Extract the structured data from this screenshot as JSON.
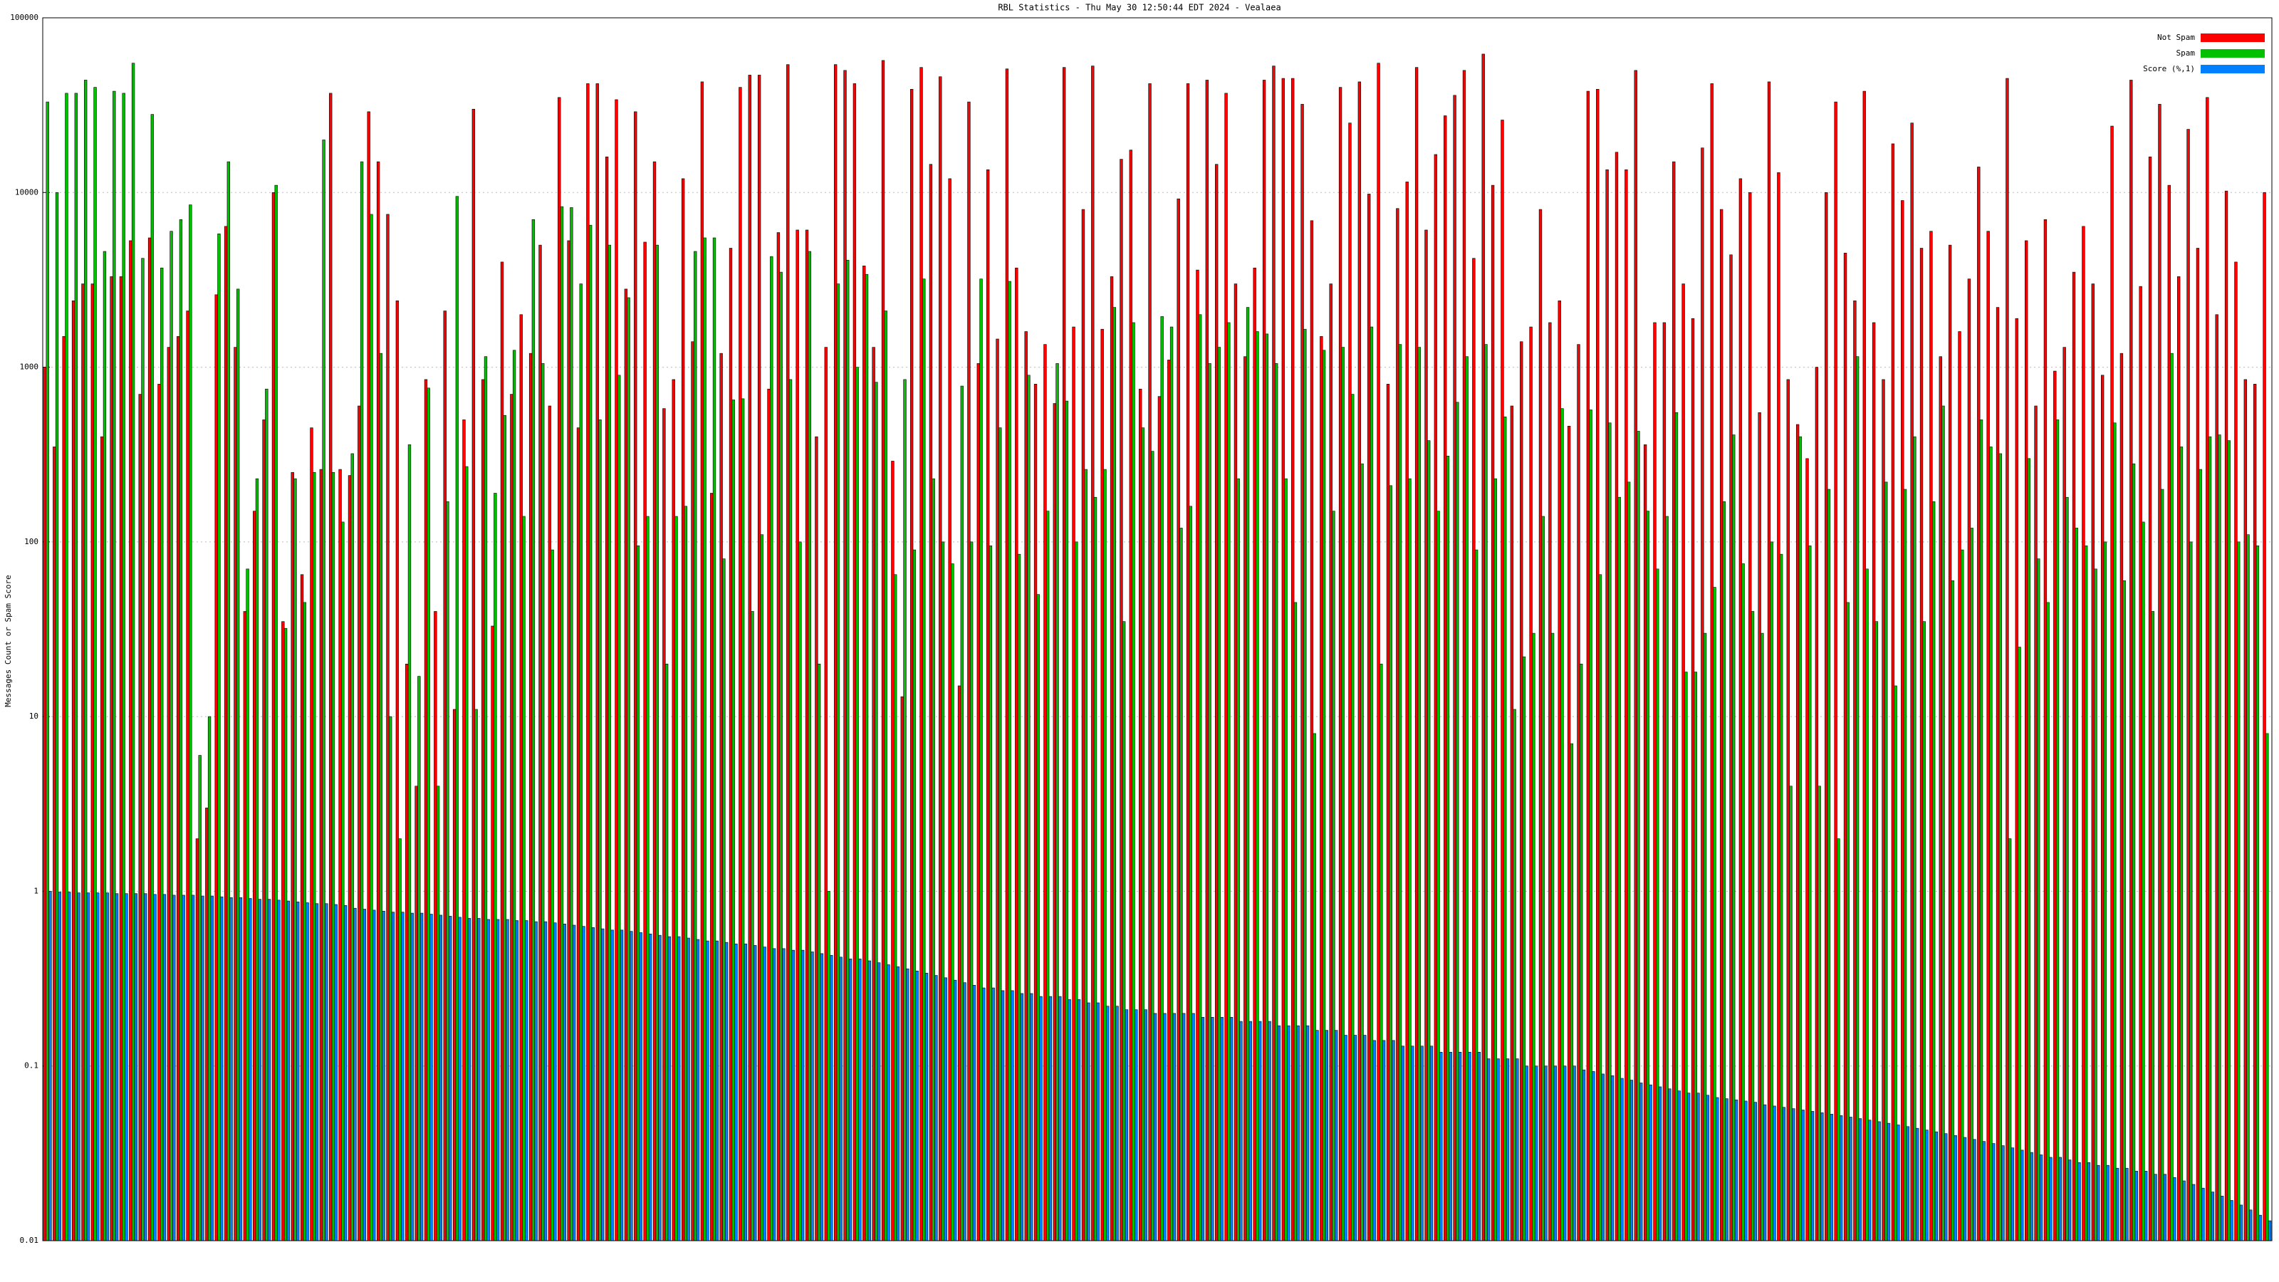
{
  "chart_data": {
    "type": "bar",
    "title": "RBL Statistics - Thu May 30 12:50:44 EDT 2024 - Vealaea",
    "y_label": "Messages Count or Spam Score",
    "log_scale": true,
    "grid": true,
    "legend": "top right",
    "ylim": [
      0.01,
      100000
    ],
    "yticks": [
      0.01,
      0.1,
      1,
      10,
      100,
      1000,
      10000,
      100000
    ],
    "categories": [
      null,
      null,
      null,
      null,
      null,
      null,
      null,
      null,
      null,
      null,
      null,
      null,
      null,
      null,
      null,
      null,
      null,
      null,
      null,
      null,
      null,
      null,
      null,
      null,
      null,
      null,
      null,
      null,
      null,
      null,
      null,
      null,
      null,
      null,
      null,
      null,
      null,
      null,
      null,
      null,
      null,
      null,
      null,
      null,
      null,
      null,
      null,
      null,
      null,
      null,
      null,
      null,
      null,
      null,
      null,
      null,
      null,
      null,
      null,
      null,
      null,
      null,
      null,
      null,
      null,
      null,
      null,
      null,
      null,
      null,
      null,
      null,
      null,
      null,
      null,
      null,
      null,
      null,
      null,
      null,
      null,
      null,
      null,
      null,
      null,
      null,
      null,
      null,
      null,
      null,
      null,
      null,
      null,
      null,
      null,
      null,
      null,
      null,
      null,
      null,
      null,
      null,
      null,
      null,
      null,
      null,
      null,
      null,
      null,
      null,
      null,
      null,
      null,
      null,
      null,
      null,
      null,
      null,
      null,
      null,
      null,
      null,
      null,
      null,
      null,
      null,
      null,
      null,
      null,
      null,
      null,
      null,
      null,
      null,
      null,
      null,
      null,
      null,
      null,
      null,
      null,
      null,
      null,
      null,
      null,
      null,
      null,
      null,
      null,
      null,
      null,
      null,
      null,
      null,
      null,
      null,
      null,
      null,
      null,
      null,
      null,
      null,
      null,
      null,
      null,
      null,
      null,
      null,
      null,
      null,
      null,
      null,
      null,
      null,
      null,
      null,
      null,
      null,
      null,
      null,
      null,
      null,
      null,
      null,
      null,
      null,
      null,
      null,
      null,
      null,
      null,
      null,
      null,
      null,
      null,
      null,
      null,
      null,
      null,
      null,
      null,
      null,
      null,
      null,
      null,
      null,
      null,
      null,
      null,
      null,
      null,
      null,
      null,
      null,
      null,
      null,
      null,
      null,
      null,
      null,
      null,
      null,
      null,
      null,
      null,
      null,
      null,
      null,
      null,
      null,
      null,
      null,
      null,
      null
    ],
    "series": [
      {
        "name": "Not Spam",
        "color": "#ff0000",
        "values": [
          1000,
          350,
          1500,
          2400,
          3000,
          3000,
          400,
          3300,
          3300,
          5300,
          700,
          5500,
          800,
          1300,
          1500,
          2100,
          2,
          3,
          2600,
          6400,
          1300,
          40,
          150,
          500,
          10000,
          35,
          250,
          65,
          450,
          260,
          37000,
          260,
          240,
          600,
          29000,
          15000,
          7500,
          2400,
          20,
          4,
          850,
          40,
          2100,
          11,
          500,
          30000,
          850,
          33,
          4000,
          700,
          2000,
          1200,
          5000,
          600,
          35000,
          5300,
          450,
          42000,
          42000,
          16000,
          34000,
          2800,
          29000,
          5200,
          15000,
          580,
          850,
          12000,
          1400,
          43000,
          190,
          1200,
          4800,
          40000,
          47000,
          47000,
          750,
          5900,
          54000,
          6100,
          6100,
          400,
          1300,
          54000,
          50000,
          42000,
          3800,
          1300,
          57000,
          290,
          13,
          39000,
          52000,
          14500,
          46000,
          12000,
          15,
          33000,
          1050,
          13500,
          1450,
          51000,
          3700,
          1600,
          800,
          1350,
          620,
          52000,
          1700,
          8000,
          53000,
          1650,
          3300,
          15500,
          17500,
          750,
          42000,
          680,
          1100,
          9200,
          42000,
          3600,
          44000,
          14500,
          37000,
          3000,
          1150,
          3700,
          44000,
          53000,
          45000,
          45000,
          32000,
          6900,
          1500,
          3000,
          40000,
          25000,
          43000,
          9800,
          55000,
          800,
          8100,
          11500,
          52000,
          6100,
          16500,
          27500,
          36000,
          50000,
          4200,
          62000,
          11000,
          26000,
          600,
          1400,
          1700,
          8000,
          1800,
          2400,
          460,
          1350,
          38000,
          39000,
          13500,
          17000,
          13500,
          50000,
          360,
          1800,
          1800,
          15000,
          3000,
          1900,
          18000,
          42000,
          8000,
          4400,
          12000,
          10000,
          550,
          43000,
          13000,
          850,
          470,
          300,
          1000,
          10000,
          33000,
          4500,
          2400,
          38000,
          1800,
          850,
          19000,
          9000,
          25000,
          4800,
          6000,
          1150,
          5000,
          1600,
          3200,
          14000,
          6000,
          2200,
          45000,
          1900,
          5300,
          600,
          7000,
          950,
          1300,
          3500,
          6400,
          3000,
          900,
          24000,
          1200,
          44000,
          2900,
          16000,
          32000,
          11000,
          3300,
          23000,
          4800,
          35000,
          2000,
          10200,
          4000,
          850,
          800,
          10000
        ]
      },
      {
        "name": "Spam",
        "color": "#00c000",
        "values": [
          33000,
          10000,
          37000,
          37000,
          44000,
          40000,
          4600,
          38000,
          37000,
          55000,
          4200,
          28000,
          3700,
          6000,
          7000,
          8500,
          6,
          10,
          5800,
          15000,
          2800,
          70,
          230,
          750,
          11000,
          32,
          230,
          45,
          250,
          20000,
          250,
          130,
          320,
          15000,
          7500,
          1200,
          10,
          2,
          360,
          17,
          760,
          4,
          170,
          9500,
          270,
          11,
          1150,
          190,
          530,
          1250,
          140,
          7000,
          1050,
          90,
          8300,
          8200,
          3000,
          6500,
          500,
          5000,
          900,
          2500,
          95,
          140,
          5000,
          20,
          140,
          160,
          4600,
          5500,
          5500,
          80,
          650,
          660,
          40,
          110,
          4300,
          3500,
          850,
          100,
          4600,
          20,
          1,
          3000,
          4100,
          1000,
          3400,
          820,
          2100,
          65,
          850,
          90,
          3200,
          230,
          100,
          75,
          780,
          100,
          3200,
          95,
          450,
          3100,
          85,
          900,
          50,
          150,
          1050,
          640,
          100,
          260,
          180,
          260,
          2200,
          35,
          1800,
          450,
          330,
          1950,
          1700,
          120,
          160,
          2000,
          1050,
          1300,
          1800,
          230,
          2200,
          1600,
          1550,
          1050,
          230,
          45,
          1650,
          8,
          1250,
          150,
          1300,
          700,
          280,
          1700,
          20,
          210,
          1350,
          230,
          1300,
          380,
          150,
          310,
          630,
          1150,
          90,
          1350,
          230,
          520,
          11,
          22,
          30,
          140,
          30,
          580,
          7,
          20,
          570,
          65,
          480,
          180,
          220,
          430,
          150,
          70,
          140,
          550,
          18,
          18,
          30,
          55,
          170,
          410,
          75,
          40,
          30,
          100,
          85,
          4,
          400,
          95,
          4,
          200,
          2,
          45,
          1150,
          70,
          35,
          220,
          15,
          200,
          400,
          35,
          170,
          600,
          60,
          90,
          120,
          500,
          350,
          320,
          2,
          25,
          300,
          80,
          45,
          500,
          180,
          120,
          95,
          70,
          100,
          480,
          60,
          280,
          130,
          40,
          200,
          1200,
          350,
          100,
          260,
          400,
          410,
          380,
          100,
          110,
          95,
          8
        ]
      },
      {
        "name": "Score (%,1)",
        "color": "#0080ff",
        "values": [
          1,
          0.99,
          0.99,
          0.98,
          0.98,
          0.98,
          0.98,
          0.97,
          0.97,
          0.97,
          0.97,
          0.96,
          0.96,
          0.95,
          0.95,
          0.95,
          0.94,
          0.94,
          0.93,
          0.92,
          0.92,
          0.91,
          0.9,
          0.9,
          0.89,
          0.88,
          0.87,
          0.86,
          0.85,
          0.85,
          0.84,
          0.83,
          0.8,
          0.79,
          0.78,
          0.77,
          0.76,
          0.76,
          0.75,
          0.75,
          0.74,
          0.73,
          0.72,
          0.71,
          0.7,
          0.7,
          0.69,
          0.69,
          0.69,
          0.68,
          0.68,
          0.67,
          0.67,
          0.66,
          0.65,
          0.64,
          0.63,
          0.62,
          0.61,
          0.6,
          0.6,
          0.59,
          0.58,
          0.57,
          0.56,
          0.55,
          0.55,
          0.54,
          0.53,
          0.52,
          0.52,
          0.51,
          0.5,
          0.5,
          0.49,
          0.48,
          0.47,
          0.47,
          0.46,
          0.46,
          0.45,
          0.44,
          0.43,
          0.42,
          0.41,
          0.41,
          0.4,
          0.39,
          0.38,
          0.37,
          0.36,
          0.35,
          0.34,
          0.33,
          0.32,
          0.31,
          0.3,
          0.29,
          0.28,
          0.28,
          0.27,
          0.27,
          0.26,
          0.26,
          0.25,
          0.25,
          0.25,
          0.24,
          0.24,
          0.23,
          0.23,
          0.22,
          0.22,
          0.21,
          0.21,
          0.21,
          0.2,
          0.2,
          0.2,
          0.2,
          0.2,
          0.19,
          0.19,
          0.19,
          0.19,
          0.18,
          0.18,
          0.18,
          0.18,
          0.17,
          0.17,
          0.17,
          0.17,
          0.16,
          0.16,
          0.16,
          0.15,
          0.15,
          0.15,
          0.14,
          0.14,
          0.14,
          0.13,
          0.13,
          0.13,
          0.13,
          0.12,
          0.12,
          0.12,
          0.12,
          0.12,
          0.11,
          0.11,
          0.11,
          0.11,
          0.1,
          0.1,
          0.1,
          0.1,
          0.1,
          0.1,
          0.095,
          0.093,
          0.09,
          0.088,
          0.085,
          0.083,
          0.08,
          0.078,
          0.076,
          0.074,
          0.072,
          0.07,
          0.07,
          0.068,
          0.066,
          0.065,
          0.064,
          0.063,
          0.062,
          0.06,
          0.059,
          0.058,
          0.057,
          0.056,
          0.055,
          0.054,
          0.053,
          0.052,
          0.051,
          0.05,
          0.049,
          0.048,
          0.047,
          0.046,
          0.045,
          0.044,
          0.043,
          0.042,
          0.041,
          0.04,
          0.039,
          0.038,
          0.037,
          0.036,
          0.035,
          0.034,
          0.033,
          0.032,
          0.031,
          0.03,
          0.03,
          0.029,
          0.028,
          0.028,
          0.027,
          0.027,
          0.026,
          0.026,
          0.025,
          0.025,
          0.024,
          0.024,
          0.023,
          0.022,
          0.021,
          0.02,
          0.019,
          0.018,
          0.017,
          0.016,
          0.015,
          0.014,
          0.013
        ]
      }
    ]
  }
}
